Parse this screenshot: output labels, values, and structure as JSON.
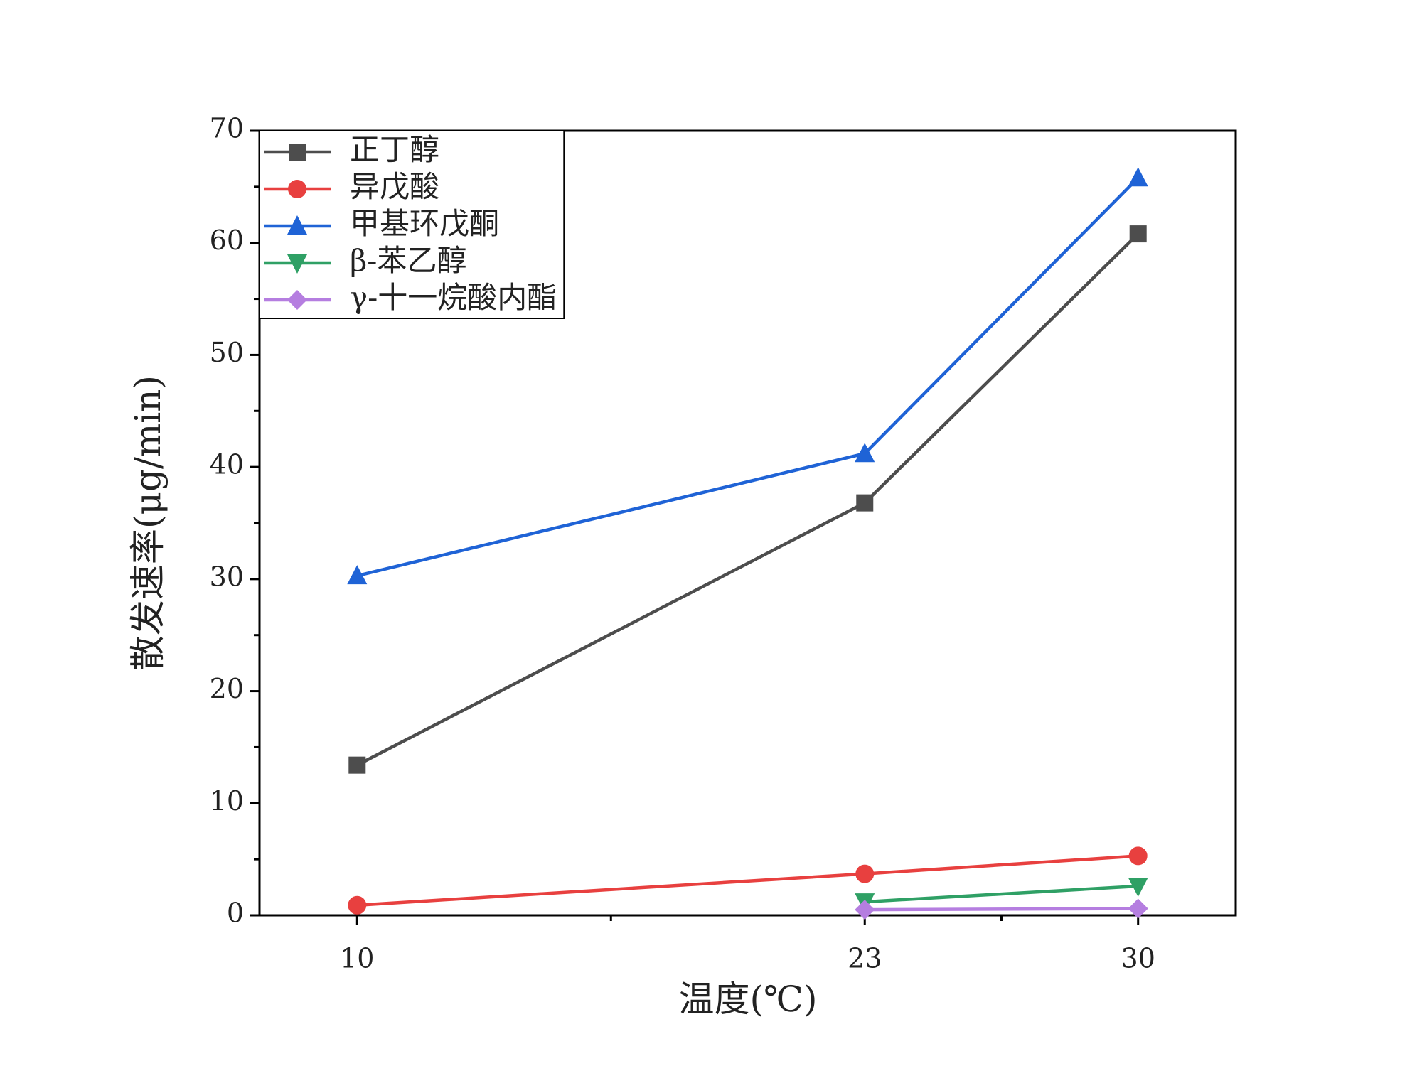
{
  "chart_data": {
    "type": "line",
    "x_label": "温度(℃)",
    "y_label": "散发速率(μg/min)",
    "x": [
      10,
      23,
      30
    ],
    "series": [
      {
        "name": "正丁醇",
        "color": "#4d4d4d",
        "marker": "square",
        "values": [
          13.4,
          36.8,
          60.8
        ]
      },
      {
        "name": "异戊酸",
        "color": "#e8403f",
        "marker": "circle",
        "values": [
          0.9,
          3.7,
          5.3
        ]
      },
      {
        "name": "甲基环戊酮",
        "color": "#1f63d6",
        "marker": "triangle-up",
        "values": [
          30.3,
          41.2,
          65.8
        ]
      },
      {
        "name": "β-苯乙醇",
        "color": "#2fa065",
        "marker": "triangle-down",
        "values": [
          null,
          1.2,
          2.6
        ]
      },
      {
        "name": "γ-十一烷酸内酯",
        "color": "#b57ee0",
        "marker": "diamond",
        "values": [
          null,
          0.5,
          0.6
        ]
      }
    ],
    "xlim": [
      7.5,
      32.5
    ],
    "xticks": [
      10,
      23,
      30
    ],
    "ylim": [
      0,
      70
    ],
    "yticks": [
      0,
      10,
      20,
      30,
      40,
      50,
      60,
      70
    ],
    "grid": false,
    "legend": "upper left"
  }
}
